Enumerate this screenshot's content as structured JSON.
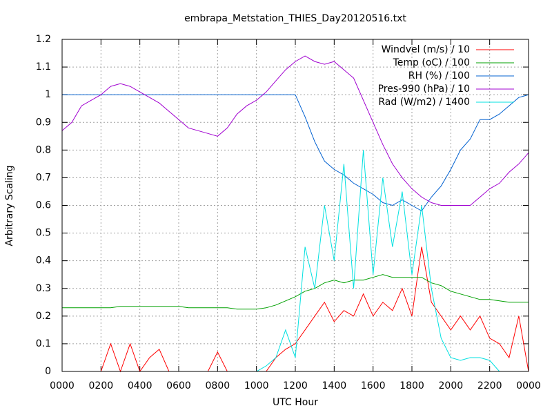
{
  "chart_data": {
    "type": "line",
    "title": "embrapa_Metstation_THIES_Day20120516.txt",
    "xlabel": "UTC Hour",
    "ylabel": "Arbitrary Scaling",
    "x": [
      0,
      0.5,
      1,
      1.5,
      2,
      2.5,
      3,
      3.5,
      4,
      4.5,
      5,
      5.5,
      6,
      6.5,
      7,
      7.5,
      8,
      8.5,
      9,
      9.5,
      10,
      10.5,
      11,
      11.5,
      12,
      12.5,
      13,
      13.5,
      14,
      14.5,
      15,
      15.5,
      16,
      16.5,
      17,
      17.5,
      18,
      18.5,
      19,
      19.5,
      20,
      20.5,
      21,
      21.5,
      22,
      22.5,
      23,
      23.5,
      24
    ],
    "xlim": [
      0,
      24
    ],
    "xticks": [
      {
        "value": 0,
        "label": "0000"
      },
      {
        "value": 2,
        "label": "0200"
      },
      {
        "value": 4,
        "label": "0400"
      },
      {
        "value": 6,
        "label": "0600"
      },
      {
        "value": 8,
        "label": "0800"
      },
      {
        "value": 10,
        "label": "1000"
      },
      {
        "value": 12,
        "label": "1200"
      },
      {
        "value": 14,
        "label": "1400"
      },
      {
        "value": 16,
        "label": "1600"
      },
      {
        "value": 18,
        "label": "1800"
      },
      {
        "value": 20,
        "label": "2000"
      },
      {
        "value": 22,
        "label": "2200"
      },
      {
        "value": 24,
        "label": "0000"
      }
    ],
    "ylim": [
      0,
      1.2
    ],
    "yticks": [
      0,
      0.1,
      0.2,
      0.3,
      0.4,
      0.5,
      0.6,
      0.7,
      0.8,
      0.9,
      1,
      1.1,
      1.2
    ],
    "grid": true,
    "legend": "top-right",
    "series": [
      {
        "name": "Windvel (m/s) / 10",
        "color": "#ff0000",
        "values": [
          0,
          0,
          0,
          0,
          0,
          0.1,
          0,
          0.1,
          0,
          0.05,
          0.08,
          0,
          0,
          0,
          0,
          0,
          0.07,
          0,
          0,
          0,
          0,
          0,
          0.05,
          0.08,
          0.1,
          0.15,
          0.2,
          0.25,
          0.18,
          0.22,
          0.2,
          0.28,
          0.2,
          0.25,
          0.22,
          0.3,
          0.2,
          0.45,
          0.25,
          0.2,
          0.15,
          0.2,
          0.15,
          0.2,
          0.12,
          0.1,
          0.05,
          0.2,
          0
        ]
      },
      {
        "name": "Temp (oC) / 100",
        "color": "#00a000",
        "values": [
          0.23,
          0.23,
          0.23,
          0.23,
          0.23,
          0.23,
          0.235,
          0.235,
          0.235,
          0.235,
          0.235,
          0.235,
          0.235,
          0.23,
          0.23,
          0.23,
          0.23,
          0.23,
          0.225,
          0.225,
          0.225,
          0.23,
          0.24,
          0.255,
          0.27,
          0.29,
          0.3,
          0.32,
          0.33,
          0.32,
          0.33,
          0.33,
          0.34,
          0.35,
          0.34,
          0.34,
          0.34,
          0.34,
          0.32,
          0.31,
          0.29,
          0.28,
          0.27,
          0.26,
          0.26,
          0.255,
          0.25,
          0.25,
          0.25
        ]
      },
      {
        "name": "RH (%) / 100",
        "color": "#0060d0",
        "values": [
          1,
          1,
          1,
          1,
          1,
          1,
          1,
          1,
          1,
          1,
          1,
          1,
          1,
          1,
          1,
          1,
          1,
          1,
          1,
          1,
          1,
          1,
          1,
          1,
          1,
          0.92,
          0.83,
          0.76,
          0.73,
          0.71,
          0.68,
          0.66,
          0.64,
          0.61,
          0.6,
          0.62,
          0.6,
          0.58,
          0.63,
          0.67,
          0.73,
          0.8,
          0.84,
          0.91,
          0.91,
          0.93,
          0.96,
          0.99,
          1
        ]
      },
      {
        "name": "Pres-990 (hPa) / 10",
        "color": "#a000d0",
        "values": [
          0.87,
          0.9,
          0.96,
          0.98,
          1,
          1.03,
          1.04,
          1.03,
          1.01,
          0.99,
          0.97,
          0.94,
          0.91,
          0.88,
          0.87,
          0.86,
          0.85,
          0.88,
          0.93,
          0.96,
          0.98,
          1.01,
          1.05,
          1.09,
          1.12,
          1.14,
          1.12,
          1.11,
          1.12,
          1.09,
          1.06,
          0.98,
          0.9,
          0.82,
          0.75,
          0.7,
          0.66,
          0.63,
          0.61,
          0.6,
          0.6,
          0.6,
          0.6,
          0.63,
          0.66,
          0.68,
          0.72,
          0.75,
          0.79
        ]
      },
      {
        "name": "Rad (W/m2) / 1400",
        "color": "#00e0e0",
        "values": [
          0,
          0,
          0,
          0,
          0,
          0,
          0,
          0,
          0,
          0,
          0,
          0,
          0,
          0,
          0,
          0,
          0,
          0,
          0,
          0,
          0,
          0.02,
          0.05,
          0.15,
          0.05,
          0.45,
          0.3,
          0.6,
          0.4,
          0.75,
          0.3,
          0.8,
          0.35,
          0.7,
          0.45,
          0.65,
          0.35,
          0.6,
          0.3,
          0.12,
          0.05,
          0.04,
          0.05,
          0.05,
          0.04,
          0,
          0,
          0,
          0
        ]
      }
    ]
  }
}
